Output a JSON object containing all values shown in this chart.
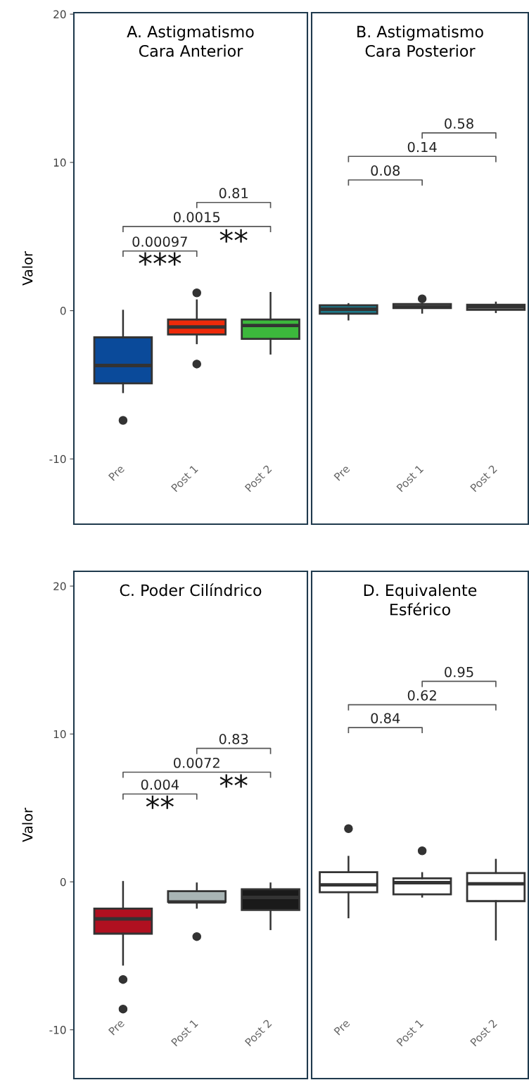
{
  "chart_data": [
    {
      "type": "box",
      "title": "A. Astigmatismo\nCara Anterior",
      "ylabel": "Valor",
      "categories": [
        "Pre",
        "Post 1",
        "Post 2"
      ],
      "colors": [
        "#0a4a9a",
        "#ee2a0a",
        "#3cb83c"
      ],
      "boxes": [
        {
          "low": -5.5,
          "q1": -4.9,
          "median": -3.7,
          "q3": -1.8,
          "high": 0,
          "outliers": [
            -7.4
          ]
        },
        {
          "low": -2.2,
          "q1": -1.6,
          "median": -1.1,
          "q3": -0.6,
          "high": 0.7,
          "outliers": [
            1.2,
            -3.6
          ]
        },
        {
          "low": -2.9,
          "q1": -1.9,
          "median": -1.0,
          "q3": -0.6,
          "high": 1.2
        }
      ],
      "ylim": [
        -14.4,
        20.1
      ],
      "yticks": [
        {
          "value": -10,
          "label": "-10"
        },
        0,
        10,
        20
      ],
      "annotations": [
        "0.00097",
        "0.0015",
        "0.81",
        "***",
        "**"
      ]
    },
    {
      "type": "box",
      "title": "B. Astigmatismo\nCara Posterior",
      "categories": [
        "Pre",
        "Post 1",
        "Post 2"
      ],
      "colors": [
        "#1b7a8c",
        "#ffffff",
        "#ffffff"
      ],
      "boxes": [
        {
          "low": -0.6,
          "q1": -0.2,
          "median": 0.1,
          "q3": 0.36,
          "high": 0.45
        },
        {
          "low": -0.14,
          "q1": 0.17,
          "median": 0.28,
          "q3": 0.45,
          "high": 0.45,
          "outliers": [
            0.8
          ]
        },
        {
          "low": -0.1,
          "q1": 0.06,
          "median": 0.25,
          "q3": 0.4,
          "high": 0.55
        }
      ],
      "ylim": [
        -14.4,
        20.1
      ],
      "tick_labels": "x",
      "annotations": [
        "0.08",
        "0.14",
        "0.58"
      ]
    },
    {
      "type": "box",
      "title": "C. Poder Cilíndrico",
      "ylabel": "Valor",
      "categories": [
        "Pre",
        "Post 1",
        "Post 2"
      ],
      "colors": [
        "#b01020",
        "#a8b4b4",
        "#1a1a1a"
      ],
      "boxes": [
        {
          "low": -5.6,
          "q1": -3.5,
          "median": -2.5,
          "q3": -1.8,
          "high": 0,
          "outliers": [
            -6.6,
            -8.6
          ]
        },
        {
          "low": -1.75,
          "q1": -1.35,
          "median": -1.35,
          "q3": -0.63,
          "high": -0.1,
          "outliers": [
            -3.7
          ]
        },
        {
          "low": -3.2,
          "q1": -1.9,
          "median": -1.05,
          "q3": -0.5,
          "high": -0.1
        }
      ],
      "ylim": [
        -13.3,
        21.0
      ],
      "yticks": [
        {
          "value": -10,
          "label": "-10"
        },
        0,
        10,
        20
      ],
      "annotations": [
        "0.004",
        "0.0072",
        "0.83",
        "**",
        "**"
      ]
    },
    {
      "type": "box",
      "title": "D. Equivalente\nEsférico",
      "categories": [
        "Pre",
        "Post 1",
        "Post 2"
      ],
      "colors": [
        "#ffffff",
        "#ffffff",
        "#ffffff"
      ],
      "boxes": [
        {
          "low": -2.4,
          "q1": -0.7,
          "median": -0.2,
          "q3": 0.66,
          "high": 1.7,
          "outliers": [
            3.6
          ]
        },
        {
          "low": -1.0,
          "q1": -0.84,
          "median": -0.05,
          "q3": 0.24,
          "high": 0.6,
          "outliers": [
            2.1
          ]
        },
        {
          "low": -3.9,
          "q1": -1.3,
          "median": -0.13,
          "q3": 0.6,
          "high": 1.5
        }
      ],
      "ylim": [
        -13.3,
        21.0
      ],
      "tick_labels": "x",
      "annotations": [
        "0.84",
        "0.62",
        "0.95"
      ]
    }
  ]
}
